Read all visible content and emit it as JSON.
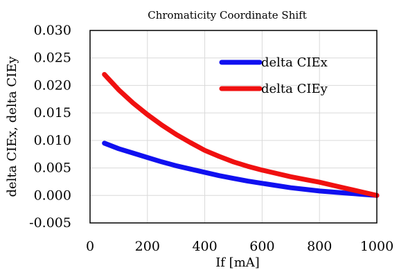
{
  "chart_data": {
    "type": "line",
    "title": "Chromaticity Coordinate Shift",
    "xlabel": "If [mA]",
    "ylabel": "delta CIEx, delta CIEy",
    "xlim": [
      0,
      1000
    ],
    "ylim": [
      -0.005,
      0.03
    ],
    "x_ticks": [
      "0",
      "200",
      "400",
      "600",
      "800",
      "1000"
    ],
    "y_ticks": [
      "-0.005",
      "0.000",
      "0.005",
      "0.010",
      "0.015",
      "0.020",
      "0.025",
      "0.030"
    ],
    "grid": true,
    "legend_position": "top-right",
    "series": [
      {
        "name": "delta CIEx",
        "color": "#1010f0",
        "x": [
          50,
          100,
          150,
          200,
          250,
          300,
          350,
          400,
          450,
          500,
          550,
          600,
          650,
          700,
          750,
          800,
          850,
          900,
          950,
          1000
        ],
        "y": [
          0.0095,
          0.0085,
          0.0077,
          0.0069,
          0.0061,
          0.0054,
          0.0048,
          0.0042,
          0.0036,
          0.0031,
          0.0026,
          0.0022,
          0.0018,
          0.0014,
          0.0011,
          0.0008,
          0.0006,
          0.0004,
          0.0002,
          0.0
        ]
      },
      {
        "name": "delta CIEy",
        "color": "#f01010",
        "x": [
          50,
          100,
          150,
          200,
          250,
          300,
          350,
          400,
          450,
          500,
          550,
          600,
          650,
          700,
          750,
          800,
          850,
          900,
          950,
          1000
        ],
        "y": [
          0.022,
          0.0192,
          0.0168,
          0.0147,
          0.0128,
          0.0111,
          0.0096,
          0.0082,
          0.0071,
          0.0061,
          0.0053,
          0.0046,
          0.004,
          0.0034,
          0.0029,
          0.0024,
          0.0018,
          0.0012,
          0.0006,
          0.0
        ]
      }
    ]
  }
}
